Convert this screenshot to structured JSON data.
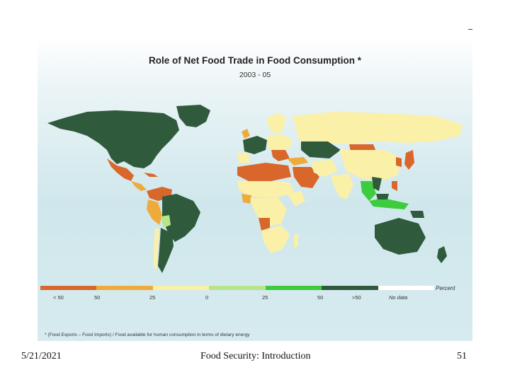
{
  "map": {
    "title": "Role of Net Food Trade in Food Consumption *",
    "subtitle": "2003 - 05",
    "legend": {
      "unit": "Percent",
      "swatches": [
        {
          "color": "#d9662a"
        },
        {
          "color": "#eeab3c"
        },
        {
          "color": "#fbf0a8"
        },
        {
          "color": "#b7e58a"
        },
        {
          "color": "#3dcc3d"
        },
        {
          "color": "#2f5a3c"
        },
        {
          "color": "#ffffff"
        }
      ],
      "ticks": [
        "< 50",
        "50",
        "25",
        "0",
        "25",
        "50",
        ">50",
        "No data"
      ]
    },
    "footnote": "* (Food Exports – Food Imports) / Food available for human consumption in terms of dietary energy",
    "colors": {
      "deep_deficit": "#d9662a",
      "deficit": "#eeab3c",
      "near_balance_deficit": "#fbf0a8",
      "near_balance_surplus": "#b7e58a",
      "surplus": "#3dcc3d",
      "large_surplus": "#2f5a3c"
    }
  },
  "footer": {
    "date": "5/21/2021",
    "title": "Food Security: Introduction",
    "page": "51"
  }
}
